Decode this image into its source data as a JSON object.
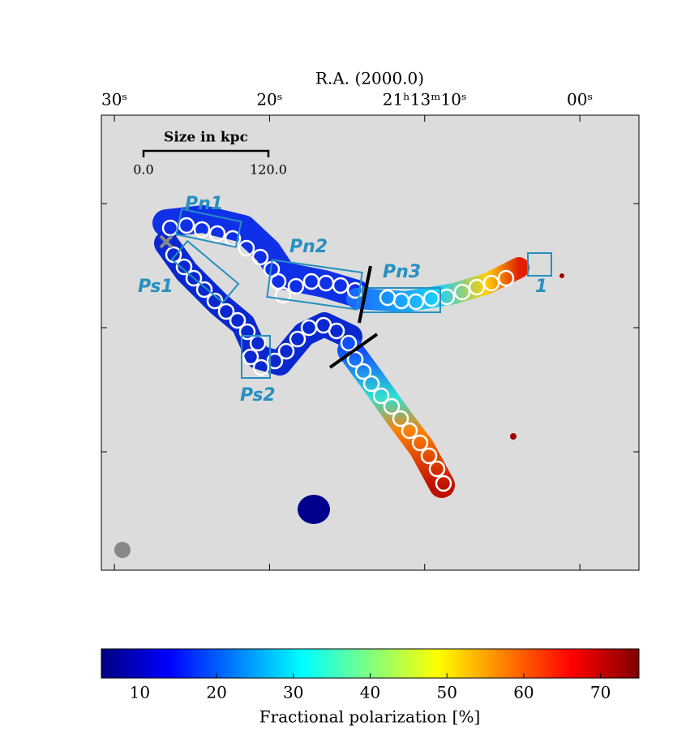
{
  "chart_data": {
    "type": "image",
    "x_label": "R.A. (2000.0)",
    "xlim": [
      30.84,
      -3.81
    ],
    "xticks": [
      {
        "value": 30,
        "label": "30ˢ"
      },
      {
        "value": 20,
        "label": "20ˢ"
      },
      {
        "value": 10,
        "label": "21ʰ13ᵐ10ˢ"
      },
      {
        "value": 0,
        "label": "00ˢ"
      }
    ],
    "scale_bar": {
      "title": "Size in kpc",
      "start": "0.0",
      "end": "120.0"
    },
    "annotations": [
      "Pn1",
      "Pn2",
      "Pn3",
      "Ps1",
      "Ps2",
      "1"
    ],
    "colorbar": {
      "label": "Fractional polarization [%]",
      "colormap": "jet",
      "lim": [
        5,
        75
      ],
      "ticks": [
        10,
        20,
        30,
        40,
        50,
        60,
        70
      ]
    }
  }
}
